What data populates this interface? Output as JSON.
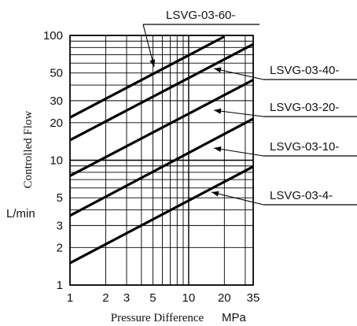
{
  "chart_data": {
    "type": "line",
    "x_scale": "log",
    "y_scale": "log",
    "xlim": [
      1,
      35
    ],
    "ylim": [
      1,
      100
    ],
    "grid": true,
    "xlabel": "Pressure Difference",
    "xunit": "MPa",
    "ylabel": "Controlled Flow",
    "yunit": "L/min",
    "x_ticks": [
      "1",
      "2",
      "3",
      "5",
      "10",
      "20",
      "35"
    ],
    "y_ticks": [
      "1",
      "2",
      "3",
      "5",
      "10",
      "20",
      "30",
      "50",
      "100"
    ],
    "series": [
      {
        "name": "LSVG-03-60-",
        "x": [
          1,
          20
        ],
        "y": [
          22,
          98
        ]
      },
      {
        "name": "LSVG-03-40-",
        "x": [
          1,
          35
        ],
        "y": [
          14.5,
          85
        ]
      },
      {
        "name": "LSVG-03-20-",
        "x": [
          1,
          35
        ],
        "y": [
          7.5,
          44
        ]
      },
      {
        "name": "LSVG-03-10-",
        "x": [
          1,
          35
        ],
        "y": [
          3.6,
          21.5
        ]
      },
      {
        "name": "LSVG-03-4-",
        "x": [
          1,
          35
        ],
        "y": [
          1.5,
          8.9
        ]
      }
    ]
  }
}
